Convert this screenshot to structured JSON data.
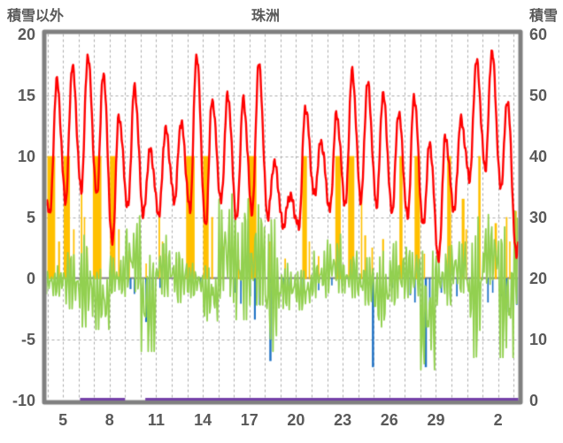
{
  "header": {
    "title": "珠洲",
    "left_axis_title": "積雪以外",
    "right_axis_title": "積雪"
  },
  "chart_data": {
    "type": "line",
    "title": "珠洲",
    "description": "Hourly weather-style chart: red line (range -10..20 left axis), yellow up-bars and blue down-bars from zero, jagged green line, flat purple line at 0 on right snow axis.",
    "x_axis": {
      "domain_days": [
        3.94,
        34.3
      ],
      "gridline_step_days": 1,
      "ticks": [
        {
          "pos": 5,
          "label": "5"
        },
        {
          "pos": 8,
          "label": "8"
        },
        {
          "pos": 11,
          "label": "11"
        },
        {
          "pos": 14,
          "label": "14"
        },
        {
          "pos": 17,
          "label": "17"
        },
        {
          "pos": 20,
          "label": "20"
        },
        {
          "pos": 23,
          "label": "23"
        },
        {
          "pos": 26,
          "label": "26"
        },
        {
          "pos": 29,
          "label": "29"
        },
        {
          "pos": 33,
          "label": "2"
        }
      ]
    },
    "left_axis": {
      "title": "積雪以外",
      "range": [
        -10,
        20
      ],
      "ticks": [
        "20",
        "15",
        "10",
        "5",
        "0",
        "-5",
        "-10"
      ]
    },
    "right_axis": {
      "title": "積雪",
      "range": [
        0,
        60
      ],
      "ticks": [
        "60",
        "50",
        "40",
        "30",
        "20",
        "10",
        "0"
      ]
    },
    "grid": {
      "vertical_dashed": true,
      "horizontal_dashed_at": [
        15,
        10,
        5,
        -5
      ],
      "zero_line_at": 0
    },
    "colors": {
      "red_line": "#FF0000",
      "yellow_bars": "#FFC000",
      "blue_bars": "#1F72C5",
      "green_line": "#92D050",
      "purple_line": "#7440A8",
      "grid": "#ABABAB",
      "axis_frame": "#808080",
      "text": "#595959"
    },
    "series": {
      "red_line_daily_min_max": [
        [
          4,
          5.5,
          16.2
        ],
        [
          5,
          6.3,
          17.4
        ],
        [
          6,
          7.2,
          18.2
        ],
        [
          7,
          6.8,
          16.8
        ],
        [
          8,
          2.8,
          13.2
        ],
        [
          9,
          5.8,
          15.6
        ],
        [
          10,
          5.2,
          10.5
        ],
        [
          11,
          5.2,
          12.2
        ],
        [
          12,
          6.4,
          12.8
        ],
        [
          13,
          5.6,
          18.3
        ],
        [
          14,
          4.2,
          14.6
        ],
        [
          15,
          6.3,
          15.0
        ],
        [
          16,
          4.8,
          14.6
        ],
        [
          17,
          5.4,
          17.6
        ],
        [
          18,
          5.0,
          9.5
        ],
        [
          19,
          4.3,
          6.8
        ],
        [
          20,
          4.2,
          14.0
        ],
        [
          21,
          6.8,
          11.2
        ],
        [
          22,
          5.6,
          13.4
        ],
        [
          23,
          6.0,
          16.9
        ],
        [
          24,
          6.4,
          16.0
        ],
        [
          25,
          6.0,
          15.1
        ],
        [
          26,
          5.4,
          13.6
        ],
        [
          27,
          5.0,
          14.9
        ],
        [
          28,
          4.3,
          11.0
        ],
        [
          29,
          1.5,
          11.5
        ],
        [
          30,
          5.6,
          13.0
        ],
        [
          31,
          8.2,
          17.8
        ],
        [
          32,
          9.0,
          18.6
        ],
        [
          33,
          7.4,
          14.6
        ],
        [
          34,
          1.8,
          8.5
        ]
      ],
      "red_line_start_value": 6.0,
      "yellow_bars": [
        [
          4.25,
          0.5,
          10
        ],
        [
          4.75,
          0.12,
          3
        ],
        [
          5.25,
          0.4,
          10
        ],
        [
          5.7,
          0.1,
          4
        ],
        [
          6.2,
          0.1,
          7.5
        ],
        [
          6.38,
          0.08,
          5
        ],
        [
          6.55,
          0.07,
          2.5
        ],
        [
          7.2,
          0.55,
          10
        ],
        [
          8.2,
          0.35,
          10
        ],
        [
          8.6,
          0.1,
          4
        ],
        [
          9.25,
          0.12,
          2.2
        ],
        [
          10.35,
          0.08,
          1.2
        ],
        [
          11.2,
          0.1,
          5.5
        ],
        [
          11.4,
          0.08,
          3
        ],
        [
          11.6,
          0.06,
          2
        ],
        [
          12.3,
          0.1,
          1.6
        ],
        [
          13.2,
          0.55,
          10
        ],
        [
          14.2,
          0.35,
          10
        ],
        [
          14.6,
          0.12,
          5
        ],
        [
          15.3,
          0.12,
          2.6
        ],
        [
          16.3,
          0.08,
          1.5
        ],
        [
          17.2,
          0.5,
          10
        ],
        [
          18.3,
          0.12,
          3
        ],
        [
          19.3,
          0.1,
          1.6
        ],
        [
          20.55,
          0.3,
          10
        ],
        [
          20.85,
          0.08,
          3
        ],
        [
          21.45,
          0.1,
          1.8
        ],
        [
          22.7,
          0.35,
          10
        ],
        [
          23.55,
          0.4,
          10
        ],
        [
          24.2,
          0.06,
          7
        ],
        [
          24.45,
          0.12,
          3.5
        ],
        [
          24.9,
          0.1,
          2.5
        ],
        [
          25.6,
          0.12,
          3.2
        ],
        [
          26.75,
          0.2,
          10
        ],
        [
          27.8,
          0.35,
          10
        ],
        [
          28.25,
          0.08,
          2
        ],
        [
          29.85,
          0.25,
          10
        ],
        [
          30.75,
          0.18,
          6.5
        ],
        [
          30.95,
          0.1,
          4
        ],
        [
          31.8,
          0.15,
          10
        ],
        [
          32.85,
          0.15,
          4.5
        ],
        [
          33.55,
          0.1,
          5
        ],
        [
          33.75,
          0.08,
          3
        ],
        [
          34.15,
          0.1,
          5.5
        ]
      ],
      "blue_bars": [
        [
          9.35,
          0.12,
          -0.9
        ],
        [
          9.6,
          0.1,
          -1.3
        ],
        [
          10.35,
          0.12,
          -3.6
        ],
        [
          10.55,
          0.1,
          -2.2
        ],
        [
          10.75,
          0.08,
          -1.0
        ],
        [
          11.25,
          0.1,
          -0.8
        ],
        [
          13.85,
          0.1,
          -0.5
        ],
        [
          16.1,
          0.1,
          -1.2
        ],
        [
          16.45,
          0.1,
          -2.1
        ],
        [
          17.05,
          0.1,
          -1.5
        ],
        [
          17.35,
          0.12,
          -3.4
        ],
        [
          17.65,
          0.1,
          -2.2
        ],
        [
          18.35,
          0.14,
          -6.8
        ],
        [
          18.55,
          0.1,
          -2.5
        ],
        [
          19.2,
          0.1,
          -1.2
        ],
        [
          19.5,
          0.08,
          -0.8
        ],
        [
          20.35,
          0.1,
          -1.5
        ],
        [
          21.45,
          0.08,
          -1.0
        ],
        [
          22.3,
          0.08,
          -0.6
        ],
        [
          24.95,
          0.14,
          -7.3
        ],
        [
          26.2,
          0.08,
          -0.8
        ],
        [
          27.35,
          0.1,
          -1.4
        ],
        [
          27.65,
          0.1,
          -2.0
        ],
        [
          28.35,
          0.14,
          -7.3
        ],
        [
          28.6,
          0.1,
          -3.0
        ],
        [
          29.35,
          0.1,
          -1.2
        ],
        [
          30.35,
          0.1,
          -1.5
        ],
        [
          31.35,
          0.1,
          -1.0
        ],
        [
          32.35,
          0.1,
          -2.0
        ],
        [
          32.65,
          0.08,
          -1.2
        ],
        [
          33.2,
          0.1,
          -1.5
        ],
        [
          33.55,
          0.12,
          -2.8
        ],
        [
          33.85,
          0.08,
          -1.0
        ],
        [
          34.2,
          0.1,
          -2.2
        ]
      ],
      "green_line_daily_envelope": [
        [
          4,
          -1.5,
          1.0
        ],
        [
          5,
          -2.5,
          2.5
        ],
        [
          6,
          -4.0,
          3.5
        ],
        [
          7,
          -4.2,
          0.8
        ],
        [
          8,
          -1.5,
          1.8
        ],
        [
          9,
          -1.2,
          5.1
        ],
        [
          10,
          -6.0,
          2.5
        ],
        [
          11,
          -1.5,
          3.5
        ],
        [
          12,
          -2.0,
          2.6
        ],
        [
          13,
          -1.6,
          1.2
        ],
        [
          14,
          -3.5,
          1.0
        ],
        [
          15,
          -2.0,
          6.9
        ],
        [
          16,
          -3.4,
          6.5
        ],
        [
          17,
          -2.2,
          6.0
        ],
        [
          18,
          -6.0,
          5.5
        ],
        [
          19,
          -2.6,
          1.2
        ],
        [
          20,
          -2.6,
          0.8
        ],
        [
          21,
          -1.6,
          2.2
        ],
        [
          22,
          -1.2,
          3.6
        ],
        [
          23,
          -1.6,
          2.2
        ],
        [
          24,
          -2.2,
          1.8
        ],
        [
          25,
          -4.0,
          2.2
        ],
        [
          26,
          -2.2,
          3.0
        ],
        [
          27,
          -1.6,
          2.6
        ],
        [
          28,
          -7.5,
          2.2
        ],
        [
          29,
          -2.2,
          2.6
        ],
        [
          30,
          -1.2,
          3.2
        ],
        [
          31,
          -6.5,
          5.0
        ],
        [
          32,
          -0.5,
          5.2
        ],
        [
          33,
          -6.5,
          4.2
        ],
        [
          34,
          -2.2,
          5.5
        ]
      ],
      "purple_line": {
        "axis": "right",
        "value": 0,
        "segments": [
          [
            6.1,
            9.0
          ],
          [
            10.3,
            34.3
          ]
        ]
      }
    }
  }
}
